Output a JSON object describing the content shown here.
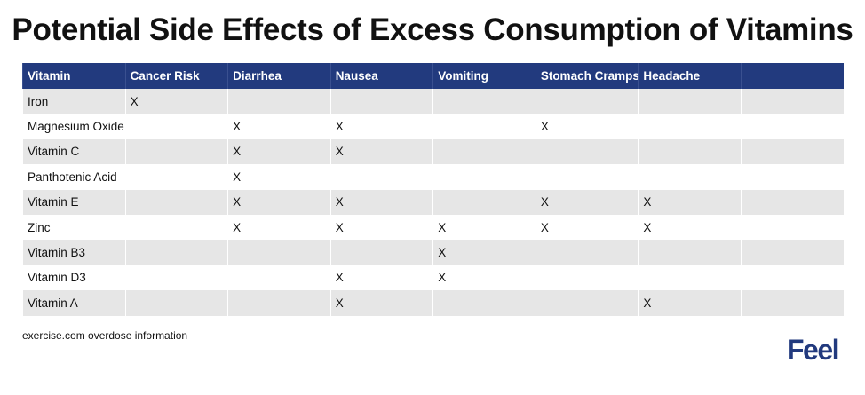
{
  "title": "Potential Side Effects of Excess Consumption of Vitamins",
  "table": {
    "header": [
      "Vitamin",
      "Cancer Risk",
      "Diarrhea",
      "Nausea",
      "Vomiting",
      "Stomach Cramps",
      "Headache"
    ],
    "rows": [
      [
        "Iron",
        "X",
        null,
        null,
        null,
        null,
        null
      ],
      [
        "Magnesium Oxide",
        null,
        "X",
        "X",
        null,
        "X",
        null
      ],
      [
        "Vitamin C",
        null,
        "X",
        "X",
        null,
        null,
        null
      ],
      [
        "Panthotenic Acid",
        null,
        "X",
        null,
        null,
        null,
        null
      ],
      [
        "Vitamin E",
        null,
        "X",
        "X",
        null,
        "X",
        "X"
      ],
      [
        "Zinc",
        null,
        "X",
        "X",
        "X",
        "X",
        "X"
      ],
      [
        "Vitamin B3",
        null,
        null,
        null,
        "X",
        null,
        null
      ],
      [
        "Vitamin D3",
        null,
        null,
        "X",
        "X",
        null,
        null
      ],
      [
        "Vitamin A",
        null,
        null,
        "X",
        null,
        null,
        "X"
      ]
    ]
  },
  "source": "exercise.com overdose information",
  "logo": "Feel"
}
